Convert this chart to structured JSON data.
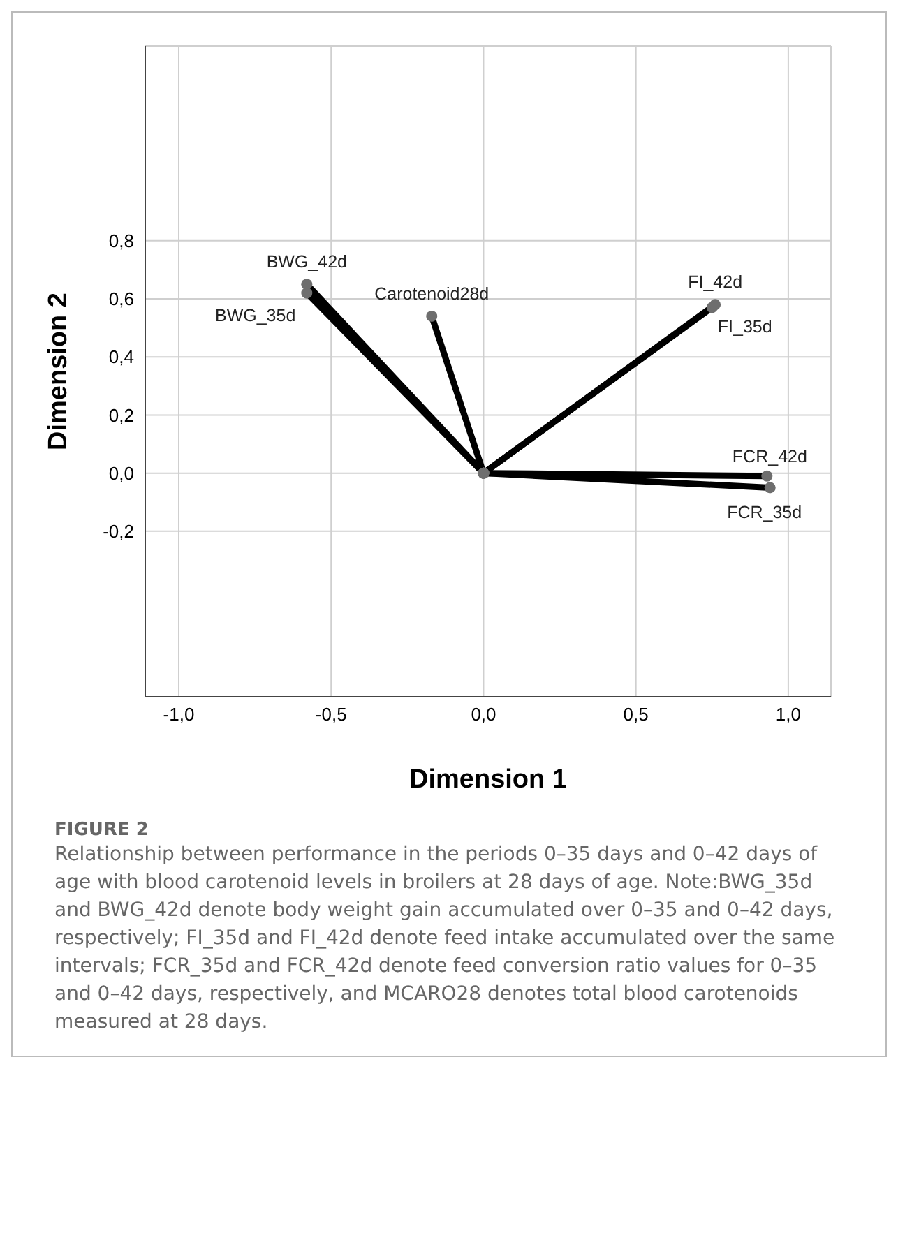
{
  "chart_data": {
    "type": "line",
    "xlabel": "Dimension 1",
    "ylabel": "Dimension 2",
    "xlim": [
      -1.11,
      1.14
    ],
    "ylim": [
      -0.77,
      1.47
    ],
    "xticks": [
      {
        "value": -1,
        "label": "-1,0"
      },
      {
        "value": -0.5,
        "label": "-0,5"
      },
      {
        "value": 0,
        "label": "0,0"
      },
      {
        "value": 0.5,
        "label": "0,5"
      },
      {
        "value": 1,
        "label": "1,0"
      }
    ],
    "yticks": [
      {
        "value": -0.2,
        "label": "-0,2"
      },
      {
        "value": 0,
        "label": "0,0"
      },
      {
        "value": 0.2,
        "label": "0,2"
      },
      {
        "value": 0.4,
        "label": "0,4"
      },
      {
        "value": 0.6,
        "label": "0,6"
      },
      {
        "value": 0.8,
        "label": "0,8"
      }
    ],
    "grid": true,
    "legend": false,
    "marker": "circle",
    "line_style": "solid",
    "series": [
      {
        "name": "BWG_42d",
        "color": "#000000",
        "x": [
          0,
          -0.58
        ],
        "values": [
          0,
          0.65
        ]
      },
      {
        "name": "BWG_35d",
        "color": "#000000",
        "x": [
          0,
          -0.58
        ],
        "values": [
          0,
          0.62
        ]
      },
      {
        "name": "Carotenoid28d",
        "color": "#000000",
        "x": [
          0,
          -0.17
        ],
        "values": [
          0,
          0.54
        ]
      },
      {
        "name": "FI_42d",
        "color": "#000000",
        "x": [
          0,
          0.76
        ],
        "values": [
          0,
          0.58
        ]
      },
      {
        "name": "FI_35d",
        "color": "#000000",
        "x": [
          0,
          0.75
        ],
        "values": [
          0,
          0.57
        ]
      },
      {
        "name": "FCR_42d",
        "color": "#000000",
        "x": [
          0,
          0.93
        ],
        "values": [
          0,
          -0.01
        ]
      },
      {
        "name": "FCR_35d",
        "color": "#000000",
        "x": [
          0,
          0.94
        ],
        "values": [
          0,
          -0.05
        ]
      }
    ],
    "annotations": [
      "FIGURE 2",
      "Relationship between performance in the periods 0–35 days and 0–42 days of age with blood carotenoid levels in broilers at 28 days of age. Note:BWG_35d and BWG_42d denote body weight gain accumulated over 0–35 and 0–42 days, respectively; FI_35d and FI_42d denote feed intake accumulated over the same intervals; FCR_35d and FCR_42d denote feed conversion ratio values for 0–35 and 0–42 days, respectively, and MCARO28 denotes total blood carotenoids measured at 28 days."
    ]
  }
}
